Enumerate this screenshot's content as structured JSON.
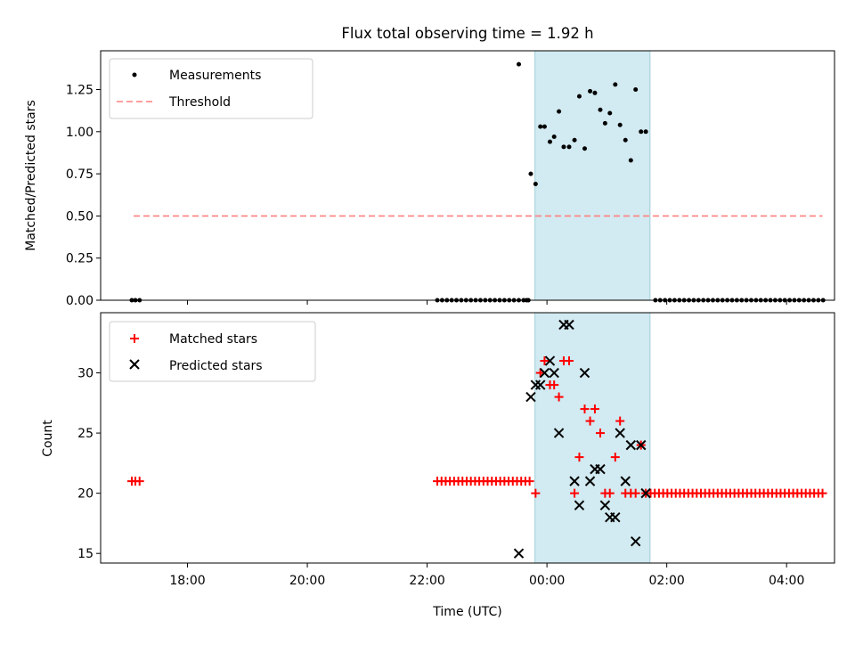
{
  "chart_data": {
    "title": "Flux total observing time = 1.92 h",
    "xlabel": "Time (UTC)",
    "xlim": [
      16.55,
      28.8
    ],
    "x_ticks": [
      18,
      20,
      22,
      24,
      26,
      28
    ],
    "x_tick_labels": [
      "18:00",
      "20:00",
      "22:00",
      "00:00",
      "02:00",
      "04:00"
    ],
    "shaded_interval": [
      23.8,
      25.72
    ],
    "panels": [
      {
        "type": "scatter",
        "name": "ratio",
        "ylabel": "Matched/Predicted stars",
        "ylim": [
          0,
          1.48
        ],
        "y_ticks": [
          0,
          0.25,
          0.5,
          0.75,
          1.0,
          1.25
        ],
        "y_tick_labels": [
          "0.00",
          "0.25",
          "0.50",
          "0.75",
          "1.00",
          "1.25"
        ],
        "legend": [
          {
            "label": "Measurements",
            "marker": "dot",
            "color": "#000000"
          },
          {
            "label": "Threshold",
            "marker": "dashed-line",
            "color": "#ff7f7f"
          }
        ],
        "threshold": {
          "y": 0.5,
          "x_start": 17.1,
          "x_end": 28.6,
          "color": "#ff7f7f"
        },
        "measurements": [
          [
            17.07,
            0
          ],
          [
            17.13,
            0
          ],
          [
            17.2,
            0
          ],
          [
            22.17,
            0
          ],
          [
            22.25,
            0
          ],
          [
            22.33,
            0
          ],
          [
            22.41,
            0
          ],
          [
            22.49,
            0
          ],
          [
            22.57,
            0
          ],
          [
            22.65,
            0
          ],
          [
            22.73,
            0
          ],
          [
            22.81,
            0
          ],
          [
            22.89,
            0
          ],
          [
            22.97,
            0
          ],
          [
            23.05,
            0
          ],
          [
            23.13,
            0
          ],
          [
            23.21,
            0
          ],
          [
            23.29,
            0
          ],
          [
            23.37,
            0
          ],
          [
            23.45,
            0
          ],
          [
            23.53,
            0
          ],
          [
            23.61,
            0
          ],
          [
            23.69,
            0
          ],
          [
            23.53,
            1.4
          ],
          [
            23.66,
            0
          ],
          [
            23.73,
            0.75
          ],
          [
            23.81,
            0.69
          ],
          [
            23.89,
            1.03
          ],
          [
            23.96,
            1.03
          ],
          [
            24.05,
            0.94
          ],
          [
            24.12,
            0.97
          ],
          [
            24.2,
            1.12
          ],
          [
            24.28,
            0.91
          ],
          [
            24.37,
            0.91
          ],
          [
            24.46,
            0.95
          ],
          [
            24.54,
            1.21
          ],
          [
            24.63,
            0.9
          ],
          [
            24.72,
            1.24
          ],
          [
            24.8,
            1.23
          ],
          [
            24.89,
            1.13
          ],
          [
            24.97,
            1.05
          ],
          [
            25.05,
            1.11
          ],
          [
            25.14,
            1.28
          ],
          [
            25.22,
            1.04
          ],
          [
            25.31,
            0.95
          ],
          [
            25.4,
            0.83
          ],
          [
            25.48,
            1.25
          ],
          [
            25.57,
            1.0
          ],
          [
            25.65,
            1.0
          ],
          [
            25.81,
            0
          ],
          [
            25.89,
            0
          ],
          [
            25.97,
            0
          ],
          [
            26.05,
            0
          ],
          [
            26.13,
            0
          ],
          [
            26.21,
            0
          ],
          [
            26.29,
            0
          ],
          [
            26.37,
            0
          ],
          [
            26.45,
            0
          ],
          [
            26.53,
            0
          ],
          [
            26.61,
            0
          ],
          [
            26.69,
            0
          ],
          [
            26.77,
            0
          ],
          [
            26.85,
            0
          ],
          [
            26.93,
            0
          ],
          [
            27.01,
            0
          ],
          [
            27.09,
            0
          ],
          [
            27.17,
            0
          ],
          [
            27.25,
            0
          ],
          [
            27.33,
            0
          ],
          [
            27.41,
            0
          ],
          [
            27.49,
            0
          ],
          [
            27.57,
            0
          ],
          [
            27.65,
            0
          ],
          [
            27.73,
            0
          ],
          [
            27.81,
            0
          ],
          [
            27.89,
            0
          ],
          [
            27.97,
            0
          ],
          [
            28.05,
            0
          ],
          [
            28.13,
            0
          ],
          [
            28.21,
            0
          ],
          [
            28.29,
            0
          ],
          [
            28.37,
            0
          ],
          [
            28.45,
            0
          ],
          [
            28.53,
            0
          ],
          [
            28.61,
            0
          ]
        ]
      },
      {
        "type": "scatter",
        "name": "counts",
        "ylabel": "Count",
        "ylim": [
          14.2,
          35.0
        ],
        "y_ticks": [
          15,
          20,
          25,
          30
        ],
        "y_tick_labels": [
          "15",
          "20",
          "25",
          "30"
        ],
        "legend": [
          {
            "label": "Matched stars",
            "marker": "plus",
            "color": "#ff0000"
          },
          {
            "label": "Predicted stars",
            "marker": "x",
            "color": "#000000"
          }
        ],
        "series": [
          {
            "name": "Matched stars",
            "marker": "plus",
            "color": "#ff0000",
            "points": [
              [
                17.07,
                21
              ],
              [
                17.13,
                21
              ],
              [
                17.2,
                21
              ],
              [
                22.17,
                21
              ],
              [
                22.24,
                21
              ],
              [
                22.31,
                21
              ],
              [
                22.38,
                21
              ],
              [
                22.45,
                21
              ],
              [
                22.52,
                21
              ],
              [
                22.59,
                21
              ],
              [
                22.66,
                21
              ],
              [
                22.73,
                21
              ],
              [
                22.8,
                21
              ],
              [
                22.87,
                21
              ],
              [
                22.94,
                21
              ],
              [
                23.01,
                21
              ],
              [
                23.08,
                21
              ],
              [
                23.15,
                21
              ],
              [
                23.22,
                21
              ],
              [
                23.29,
                21
              ],
              [
                23.36,
                21
              ],
              [
                23.43,
                21
              ],
              [
                23.5,
                21
              ],
              [
                23.57,
                21
              ],
              [
                23.64,
                21
              ],
              [
                23.71,
                21
              ],
              [
                23.81,
                20
              ],
              [
                23.89,
                30
              ],
              [
                23.96,
                31
              ],
              [
                24.05,
                29
              ],
              [
                24.12,
                29
              ],
              [
                24.2,
                28
              ],
              [
                24.28,
                31
              ],
              [
                24.37,
                31
              ],
              [
                24.46,
                20
              ],
              [
                24.54,
                23
              ],
              [
                24.63,
                27
              ],
              [
                24.72,
                26
              ],
              [
                24.8,
                27
              ],
              [
                24.89,
                25
              ],
              [
                24.97,
                20
              ],
              [
                25.05,
                20
              ],
              [
                25.14,
                23
              ],
              [
                25.22,
                26
              ],
              [
                25.31,
                20
              ],
              [
                25.4,
                20
              ],
              [
                25.48,
                20
              ],
              [
                25.57,
                24
              ],
              [
                25.65,
                20
              ],
              [
                25.73,
                20
              ],
              [
                25.8,
                20
              ],
              [
                25.87,
                20
              ],
              [
                25.94,
                20
              ],
              [
                26.01,
                20
              ],
              [
                26.08,
                20
              ],
              [
                26.15,
                20
              ],
              [
                26.22,
                20
              ],
              [
                26.29,
                20
              ],
              [
                26.36,
                20
              ],
              [
                26.43,
                20
              ],
              [
                26.5,
                20
              ],
              [
                26.57,
                20
              ],
              [
                26.64,
                20
              ],
              [
                26.71,
                20
              ],
              [
                26.78,
                20
              ],
              [
                26.85,
                20
              ],
              [
                26.92,
                20
              ],
              [
                26.99,
                20
              ],
              [
                27.06,
                20
              ],
              [
                27.13,
                20
              ],
              [
                27.2,
                20
              ],
              [
                27.27,
                20
              ],
              [
                27.34,
                20
              ],
              [
                27.41,
                20
              ],
              [
                27.48,
                20
              ],
              [
                27.55,
                20
              ],
              [
                27.62,
                20
              ],
              [
                27.69,
                20
              ],
              [
                27.76,
                20
              ],
              [
                27.83,
                20
              ],
              [
                27.9,
                20
              ],
              [
                27.97,
                20
              ],
              [
                28.04,
                20
              ],
              [
                28.11,
                20
              ],
              [
                28.18,
                20
              ],
              [
                28.25,
                20
              ],
              [
                28.32,
                20
              ],
              [
                28.39,
                20
              ],
              [
                28.46,
                20
              ],
              [
                28.53,
                20
              ],
              [
                28.6,
                20
              ]
            ]
          },
          {
            "name": "Predicted stars",
            "marker": "x",
            "color": "#000000",
            "points": [
              [
                23.53,
                15
              ],
              [
                23.73,
                28
              ],
              [
                23.81,
                29
              ],
              [
                23.89,
                29
              ],
              [
                23.96,
                30
              ],
              [
                24.05,
                31
              ],
              [
                24.12,
                30
              ],
              [
                24.2,
                25
              ],
              [
                24.28,
                34
              ],
              [
                24.37,
                34
              ],
              [
                24.46,
                21
              ],
              [
                24.54,
                19
              ],
              [
                24.63,
                30
              ],
              [
                24.72,
                21
              ],
              [
                24.8,
                22
              ],
              [
                24.89,
                22
              ],
              [
                24.97,
                19
              ],
              [
                25.05,
                18
              ],
              [
                25.14,
                18
              ],
              [
                25.22,
                25
              ],
              [
                25.31,
                21
              ],
              [
                25.4,
                24
              ],
              [
                25.48,
                16
              ],
              [
                25.57,
                24
              ],
              [
                25.65,
                20
              ]
            ]
          }
        ]
      }
    ]
  }
}
